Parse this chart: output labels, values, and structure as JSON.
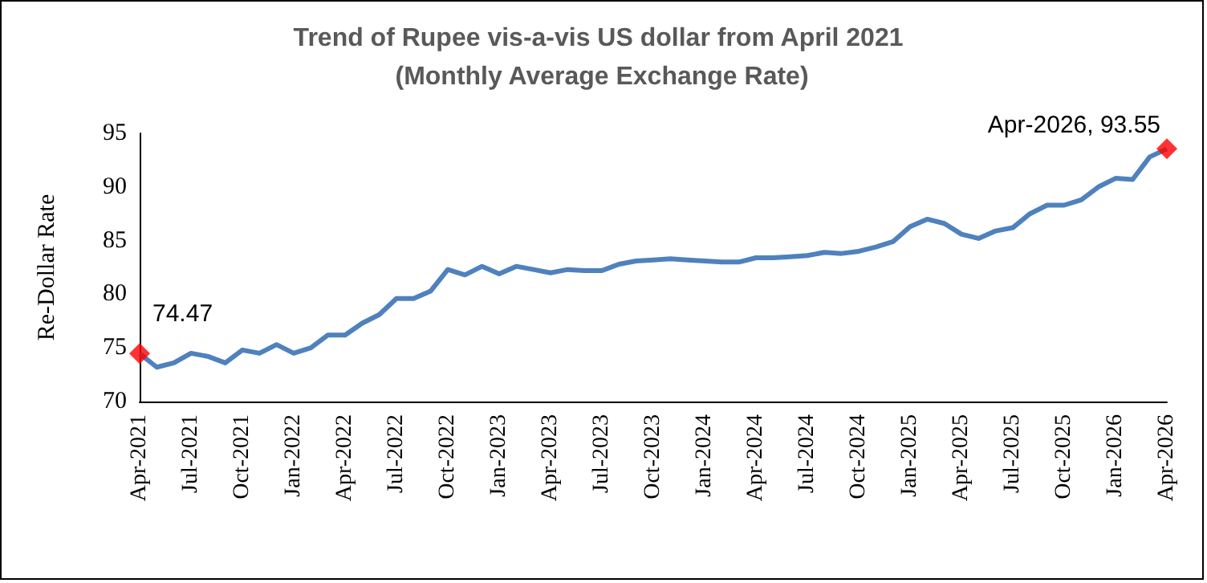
{
  "chart_data": {
    "type": "line",
    "title": "Trend of Rupee vis-a-vis US dollar from April 2021 (Monthly Average Exchange Rate)",
    "ylabel": "Re-Dollar Rate",
    "categories": [
      "Apr-2021",
      null,
      null,
      "Jul-2021",
      null,
      null,
      "Oct-2021",
      null,
      null,
      "Jan-2022",
      null,
      null,
      "Apr-2022",
      null,
      null,
      "Jul-2022",
      null,
      null,
      "Oct-2022",
      null,
      null,
      "Jan-2023",
      null,
      null,
      "Apr-2023",
      null,
      null,
      "Jul-2023",
      null,
      null,
      "Oct-2023",
      null,
      null,
      "Jan-2024",
      null,
      null,
      "Apr-2024",
      null,
      null,
      "Jul-2024",
      null,
      null,
      "Oct-2024",
      null,
      null,
      "Jan-2025",
      null,
      null,
      "Apr-2025",
      null,
      null,
      "Jul-2025",
      null,
      null,
      "Oct-2025",
      null,
      null,
      "Jan-2026",
      null,
      null,
      "Apr-2026"
    ],
    "series": [
      {
        "color": "#4f81bd",
        "marker": "none",
        "values": [
          74.47,
          73.2,
          73.6,
          74.5,
          74.2,
          73.6,
          74.8,
          74.5,
          75.3,
          74.5,
          75.0,
          76.2,
          76.2,
          77.3,
          78.1,
          79.6,
          79.6,
          80.3,
          82.3,
          81.8,
          82.6,
          81.9,
          82.6,
          82.3,
          82.0,
          82.3,
          82.2,
          82.2,
          82.8,
          83.1,
          83.2,
          83.3,
          83.2,
          83.1,
          83.0,
          83.0,
          83.4,
          83.4,
          83.5,
          83.6,
          83.9,
          83.8,
          84.0,
          84.4,
          84.9,
          86.3,
          87.0,
          86.6,
          85.6,
          85.2,
          85.9,
          86.2,
          87.5,
          88.3,
          88.3,
          88.8,
          90.0,
          90.8,
          90.7,
          92.8,
          93.55
        ]
      },
      {
        "type": "scatter",
        "color": "#ff0000",
        "marker": "diamond",
        "x": [
          "Apr-2021",
          "Apr-2026"
        ],
        "values": [
          74.47,
          93.55
        ]
      }
    ],
    "annotations": [
      {
        "text": "74.47",
        "x": "Apr-2021",
        "y": 74.47
      },
      {
        "text": "Apr-2026, 93.55",
        "x": "Apr-2026",
        "y": 93.55
      }
    ],
    "ylim": [
      70,
      95
    ],
    "yticks": [
      70,
      75,
      80,
      85,
      90,
      95
    ],
    "grid": false
  }
}
